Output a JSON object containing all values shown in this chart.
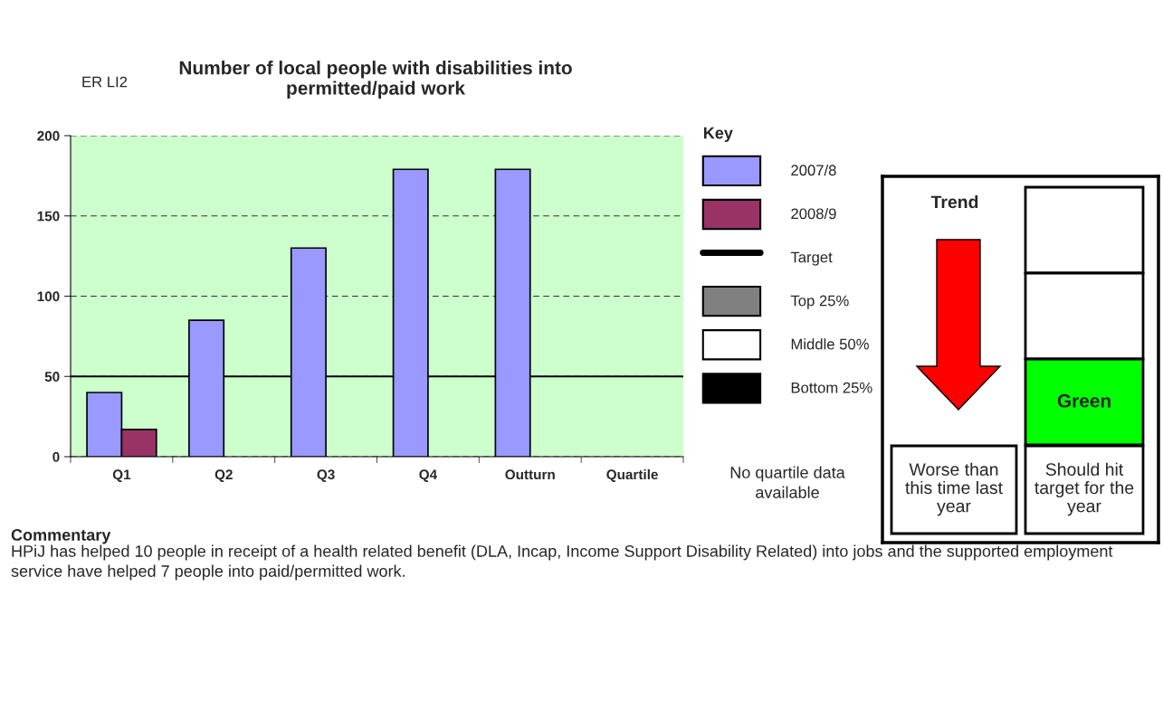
{
  "chart_data": [
    {
      "type": "bar",
      "title": "Number of local people with disabilities into\npermitted/paid work",
      "categories": [
        "Q1",
        "Q2",
        "Q3",
        "Q4",
        "Outturn",
        "Quartile"
      ],
      "series": [
        {
          "name": "2007/8",
          "color": "#9999ff",
          "values": [
            40,
            85,
            130,
            179,
            179,
            null
          ]
        },
        {
          "name": "2008/9",
          "color": "#993366",
          "values": [
            17,
            null,
            null,
            null,
            null,
            null
          ]
        },
        {
          "name": "Top 25%",
          "color": "#808080",
          "values": [
            null,
            null,
            null,
            null,
            null,
            null
          ]
        },
        {
          "name": "Middle 50%",
          "color": "#ffffff",
          "values": [
            null,
            null,
            null,
            null,
            null,
            null
          ]
        },
        {
          "name": "Bottom 25%",
          "color": "#000000",
          "values": [
            null,
            null,
            null,
            null,
            null,
            null
          ]
        }
      ],
      "ref_lines": [
        {
          "axis": "y",
          "value": 50,
          "label": "Target",
          "color": "#000000"
        }
      ],
      "ylim": [
        0,
        200
      ],
      "yticks": [
        0,
        50,
        100,
        150,
        200
      ],
      "grid": "y",
      "legend": "right",
      "legend_title": "Key",
      "annotations": [
        "ER LI2",
        "No quartile data available",
        "Commentary",
        "HPiJ has helped 10 people in receipt of a health related benefit (DLA, Incap, Income Support Disability Related) into jobs and the supported employment service have helped 7 people into paid/permitted work."
      ]
    },
    {
      "type": "other",
      "title": "Trend",
      "annotations": [
        "Green",
        "Worse than this time last year",
        "Should hit target for the year"
      ]
    }
  ]
}
